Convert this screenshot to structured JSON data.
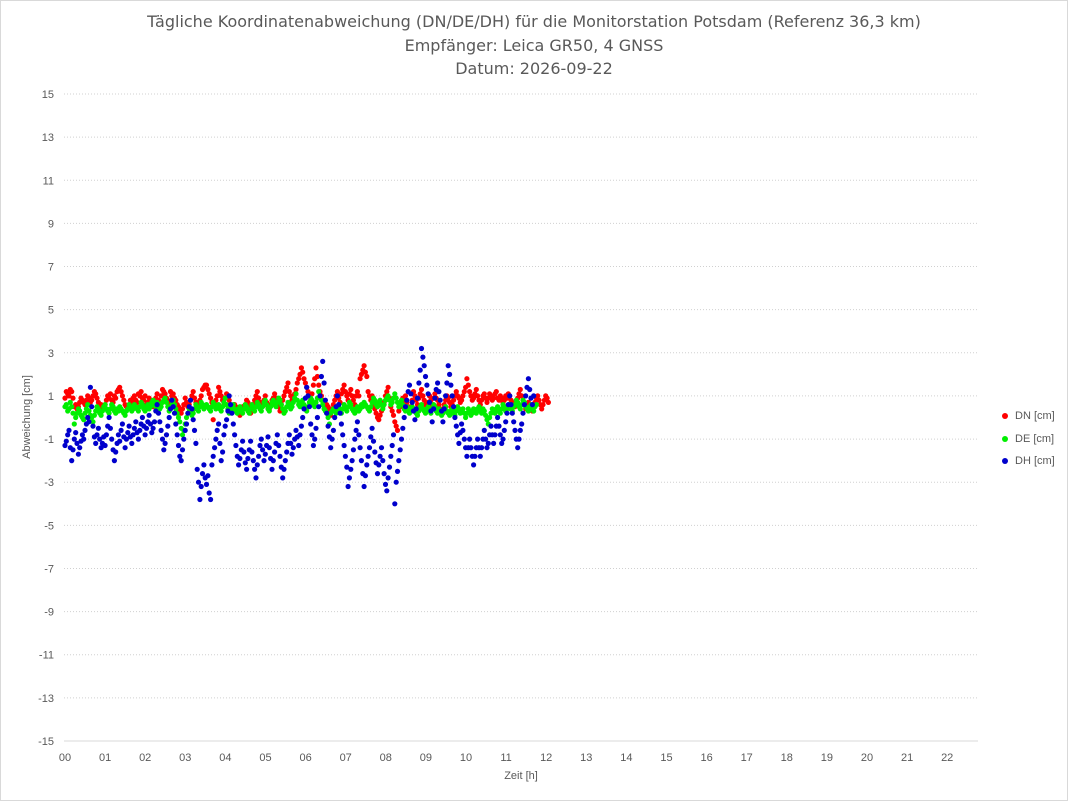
{
  "chart_data": {
    "type": "scatter",
    "title_lines": [
      "Tägliche Koordinatenabweichung (DN/DE/DH) für die Monitorstation Potsdam (Referenz 36,3 km)",
      "Empfänger: Leica GR50, 4 GNSS",
      "Datum: 2026-09-22"
    ],
    "xlabel": "Zeit [h]",
    "ylabel": "Abweichung [cm]",
    "ylim": [
      -15,
      15
    ],
    "xlim": [
      0,
      22.75
    ],
    "y_ticks": [
      "15",
      "13",
      "11",
      "9",
      "7",
      "5",
      "3",
      "1",
      "-1",
      "-3",
      "-5",
      "-7",
      "-9",
      "-11",
      "-13",
      "-15"
    ],
    "x_ticks": [
      "00",
      "01",
      "02",
      "03",
      "04",
      "05",
      "06",
      "07",
      "08",
      "09",
      "10",
      "11",
      "12",
      "13",
      "14",
      "15",
      "16",
      "17",
      "18",
      "19",
      "20",
      "21",
      "22"
    ],
    "grid": "horizontal dotted",
    "legend_position": "right",
    "x_sampling": {
      "start": 0,
      "step_hours": 0.0333
    },
    "series": [
      {
        "name": "DN [cm]",
        "color": "#ff0000",
        "values": [
          0.9,
          1.2,
          1.1,
          1.0,
          1.3,
          1.2,
          0.9,
          0.5,
          0.6,
          0.4,
          0.5,
          0.7,
          0.9,
          0.8,
          0.7,
          0.6,
          0.8,
          1.0,
          0.9,
          0.7,
          0.8,
          1.0,
          1.2,
          1.1,
          0.9,
          0.7,
          0.5,
          0.6,
          0.4,
          0.5,
          0.6,
          0.8,
          1.0,
          0.9,
          1.1,
          0.8,
          0.7,
          1.0,
          0.9,
          1.2,
          1.3,
          1.4,
          1.2,
          1.0,
          0.8,
          0.6,
          0.5,
          0.4,
          0.6,
          0.8,
          0.7,
          0.9,
          1.0,
          0.8,
          0.7,
          1.1,
          1.0,
          1.2,
          0.9,
          0.8,
          1.0,
          0.6,
          0.7,
          0.9,
          0.8,
          0.6,
          0.5,
          0.7,
          0.9,
          1.1,
          0.8,
          0.6,
          1.0,
          1.3,
          1.2,
          1.1,
          0.9,
          0.8,
          0.7,
          1.2,
          1.0,
          1.1,
          0.9,
          0.8,
          0.6,
          0.5,
          0.3,
          0.2,
          0.4,
          0.6,
          0.9,
          0.7,
          0.5,
          0.6,
          0.8,
          1.0,
          1.2,
          0.9,
          0.7,
          0.5,
          0.6,
          0.8,
          1.0,
          1.3,
          1.4,
          1.5,
          1.5,
          1.3,
          1.1,
          0.9,
          0.7,
          -0.1,
          0.6,
          0.8,
          1.0,
          1.4,
          1.2,
          1.0,
          0.8,
          0.6,
          0.9,
          1.1,
          1.0,
          0.8,
          0.6,
          0.5,
          0.4,
          0.6,
          0.5,
          0.3,
          0.2,
          0.1,
          0.3,
          0.5,
          0.4,
          0.6,
          0.8,
          0.7,
          0.5,
          0.2,
          0.4,
          0.6,
          0.8,
          1.0,
          1.2,
          0.9,
          0.7,
          0.5,
          0.6,
          0.8,
          1.0,
          0.7,
          0.5,
          0.4,
          0.6,
          0.8,
          0.9,
          1.1,
          0.9,
          0.7,
          0.5,
          0.3,
          0.6,
          0.8,
          1.0,
          1.2,
          1.4,
          1.6,
          1.2,
          1.0,
          0.8,
          0.9,
          1.1,
          1.3,
          1.6,
          1.8,
          2.0,
          2.3,
          2.1,
          1.8,
          1.6,
          1.4,
          1.2,
          1.0,
          0.8,
          1.1,
          1.5,
          1.8,
          2.3,
          1.9,
          1.5,
          1.2,
          1.0,
          0.8,
          0.6,
          0.4,
          0.6,
          0.5,
          0.3,
          0.1,
          0.4,
          0.6,
          0.8,
          1.0,
          1.2,
          0.9,
          0.7,
          1.1,
          1.3,
          1.5,
          1.2,
          1.0,
          0.8,
          1.1,
          1.3,
          1.0,
          0.8,
          0.6,
          1.0,
          1.2,
          1.0,
          1.8,
          2.0,
          2.2,
          2.4,
          2.1,
          1.9,
          1.2,
          1.0,
          0.8,
          1.0,
          0.6,
          0.4,
          0.2,
          0.0,
          -0.1,
          0.1,
          0.3,
          0.5,
          0.7,
          1.0,
          1.2,
          1.4,
          0.9,
          0.5,
          0.3,
          0.1,
          -0.2,
          -0.4,
          -0.6,
          0.3,
          0.5,
          0.7,
          0.9,
          0.8,
          1.0,
          0.7,
          0.5,
          0.3,
          0.5,
          0.8,
          1.2,
          1.0,
          0.8,
          0.6,
          0.9,
          1.1,
          1.3,
          1.0,
          0.8,
          0.6,
          0.4,
          0.7,
          1.0,
          0.8,
          0.6,
          0.9,
          1.1,
          0.9,
          0.8,
          0.6,
          0.4,
          0.2,
          0.4,
          0.6,
          0.8,
          1.0,
          0.9,
          0.7,
          0.5,
          0.6,
          0.8,
          1.0,
          1.2,
          1.0,
          0.9,
          0.7,
          0.8,
          1.0,
          1.2,
          1.4,
          1.8,
          1.5,
          1.2,
          1.0,
          0.8,
          0.9,
          1.1,
          1.3,
          1.0,
          0.8,
          0.6,
          0.8,
          1.0,
          1.1,
          0.9,
          0.7,
          0.9,
          1.1,
          1.0,
          0.8,
          0.9,
          1.1,
          1.2,
          0.9,
          0.8,
          1.0,
          0.9,
          0.7,
          0.8,
          1.0,
          0.9,
          1.1,
          1.0,
          0.8,
          0.7,
          0.6,
          0.5,
          0.7,
          0.9,
          1.1,
          1.3,
          1.0,
          0.8,
          0.6,
          0.4,
          0.5,
          0.7,
          0.6,
          0.4,
          0.3,
          0.5,
          0.7,
          0.9,
          1.0,
          0.8,
          0.6,
          0.4,
          0.6,
          0.8,
          1.0,
          0.9,
          0.7
        ]
      },
      {
        "name": "DE [cm]",
        "color": "#00ee00",
        "values": [
          0.5,
          0.6,
          0.3,
          0.4,
          0.7,
          0.5,
          0.2,
          -0.3,
          0.0,
          0.2,
          0.4,
          0.3,
          0.1,
          0.0,
          -0.1,
          0.2,
          0.4,
          0.6,
          0.3,
          0.1,
          0.0,
          -0.2,
          0.1,
          0.3,
          0.5,
          0.4,
          0.2,
          0.1,
          0.3,
          0.5,
          0.6,
          0.4,
          0.3,
          0.2,
          0.4,
          0.6,
          0.5,
          0.3,
          0.2,
          0.4,
          0.3,
          0.5,
          0.4,
          0.3,
          0.2,
          0.1,
          0.3,
          0.4,
          0.6,
          0.5,
          0.3,
          0.4,
          0.6,
          0.5,
          0.4,
          0.3,
          0.5,
          0.7,
          0.6,
          0.4,
          0.3,
          0.5,
          0.6,
          0.4,
          0.5,
          0.7,
          0.8,
          0.6,
          0.5,
          0.7,
          0.6,
          0.4,
          0.5,
          0.7,
          0.8,
          0.9,
          0.7,
          0.5,
          0.3,
          0.4,
          0.6,
          0.8,
          0.6,
          0.4,
          0.2,
          0.0,
          -0.2,
          -0.5,
          -0.8,
          -0.6,
          -0.3,
          0.0,
          0.2,
          0.4,
          0.3,
          0.1,
          0.2,
          0.4,
          0.6,
          0.5,
          0.3,
          0.5,
          0.7,
          0.6,
          0.4,
          0.5,
          0.6,
          0.5,
          0.4,
          0.3,
          0.5,
          0.7,
          0.6,
          0.4,
          0.5,
          0.6,
          0.4,
          0.3,
          0.5,
          0.7,
          0.9,
          0.6,
          0.4,
          0.2,
          0.3,
          0.5,
          0.6,
          0.4,
          0.3,
          0.2,
          0.4,
          0.5,
          0.3,
          0.2,
          0.4,
          0.6,
          0.5,
          0.3,
          0.2,
          0.4,
          0.6,
          0.5,
          0.3,
          0.5,
          0.7,
          0.6,
          0.4,
          0.3,
          0.5,
          0.7,
          0.8,
          0.6,
          0.4,
          0.3,
          0.5,
          0.7,
          0.8,
          0.6,
          0.5,
          0.7,
          0.9,
          0.8,
          0.6,
          0.4,
          0.2,
          0.3,
          0.5,
          0.7,
          0.6,
          0.4,
          0.5,
          0.7,
          0.9,
          1.1,
          0.8,
          0.6,
          0.5,
          0.7,
          0.8,
          0.6,
          0.4,
          0.3,
          0.5,
          0.7,
          0.9,
          0.8,
          0.6,
          0.5,
          0.7,
          0.9,
          1.2,
          1.0,
          0.8,
          0.6,
          0.4,
          0.3,
          0.2,
          0.0,
          -0.3,
          0.2,
          0.3,
          0.4,
          0.3,
          0.2,
          0.4,
          0.5,
          0.3,
          0.2,
          0.4,
          0.6,
          0.5,
          0.3,
          0.5,
          0.7,
          0.6,
          0.4,
          0.3,
          0.2,
          0.4,
          0.5,
          0.3,
          0.4,
          0.6,
          0.5,
          0.7,
          0.6,
          0.5,
          0.4,
          0.3,
          0.5,
          0.7,
          0.9,
          0.8,
          0.6,
          0.5,
          0.7,
          0.8,
          0.6,
          0.4,
          0.6,
          0.8,
          0.9,
          1.0,
          0.8,
          0.6,
          0.7,
          0.9,
          1.1,
          0.9,
          0.7,
          0.5,
          0.6,
          0.8,
          0.6,
          0.4,
          0.3,
          0.5,
          0.4,
          0.2,
          0.3,
          0.5,
          0.4,
          0.3,
          0.2,
          0.1,
          0.3,
          0.5,
          0.6,
          0.4,
          0.3,
          0.2,
          0.4,
          0.5,
          0.3,
          0.2,
          0.4,
          0.6,
          0.5,
          0.3,
          0.2,
          0.4,
          0.3,
          0.1,
          0.2,
          0.4,
          0.5,
          0.3,
          0.2,
          0.1,
          0.3,
          0.4,
          0.2,
          0.1,
          0.3,
          0.5,
          0.4,
          0.2,
          0.3,
          0.4,
          0.2,
          0.0,
          0.2,
          0.4,
          0.3,
          0.1,
          0.2,
          0.4,
          0.3,
          0.2,
          0.4,
          0.5,
          0.3,
          0.2,
          0.4,
          0.3,
          0.1,
          -0.1,
          -0.3,
          0.0,
          0.2,
          0.4,
          0.3,
          0.2,
          0.4,
          0.5,
          0.3,
          0.2,
          0.4,
          0.6,
          0.5,
          0.3,
          0.4,
          0.5,
          0.6,
          0.4,
          0.3,
          0.5,
          0.6,
          0.8,
          0.7,
          0.5,
          0.4,
          0.6,
          0.8,
          0.7,
          0.5,
          0.4,
          0.3,
          0.5,
          0.6,
          0.4,
          0.3,
          0.5,
          0.6
        ]
      },
      {
        "name": "DH [cm]",
        "color": "#0000cc",
        "values": [
          -1.3,
          -1.1,
          -0.8,
          -0.6,
          -1.4,
          -2.0,
          -1.5,
          -1.0,
          -0.7,
          -1.2,
          -1.7,
          -1.4,
          -1.1,
          -0.8,
          -1.0,
          -0.6,
          -0.3,
          0.0,
          -0.2,
          1.4,
          0.5,
          -0.4,
          -0.9,
          -1.2,
          -0.8,
          -0.5,
          -1.0,
          -1.4,
          -1.2,
          -0.9,
          -1.3,
          -0.8,
          -0.4,
          0.0,
          -0.5,
          -1.0,
          -1.5,
          -2.0,
          -1.6,
          -1.2,
          -0.8,
          -1.1,
          -0.6,
          -0.3,
          -0.9,
          -1.4,
          -1.0,
          -0.7,
          -0.4,
          -0.9,
          -1.2,
          -0.8,
          -0.5,
          -0.2,
          -0.7,
          -1.0,
          -0.6,
          -0.3,
          0.0,
          -0.4,
          -0.8,
          -0.5,
          -0.2,
          0.1,
          -0.3,
          -0.7,
          -0.5,
          -0.2,
          0.3,
          0.6,
          0.2,
          -0.2,
          -0.6,
          -1.0,
          -1.5,
          -1.2,
          -0.8,
          -0.4,
          0.0,
          0.4,
          0.8,
          0.5,
          0.2,
          -0.3,
          -0.8,
          -1.3,
          -1.8,
          -2.0,
          -1.5,
          -1.0,
          -0.6,
          -0.3,
          0.2,
          0.5,
          0.8,
          0.4,
          -0.1,
          -0.6,
          -1.2,
          -2.4,
          -3.0,
          -3.8,
          -3.2,
          -2.6,
          -2.2,
          -2.8,
          -3.1,
          -2.7,
          -3.5,
          -3.8,
          -2.2,
          -1.8,
          -1.4,
          -1.0,
          -0.6,
          -0.3,
          -1.2,
          -2.0,
          -1.6,
          -0.8,
          -0.4,
          -0.1,
          0.3,
          1.0,
          0.6,
          0.2,
          -0.3,
          -0.8,
          -1.3,
          -1.8,
          -2.2,
          -1.9,
          -1.5,
          -1.1,
          -1.6,
          -2.1,
          -2.4,
          -1.9,
          -1.5,
          -1.1,
          -1.6,
          -2.0,
          -2.4,
          -2.8,
          -2.2,
          -1.8,
          -1.3,
          -1.0,
          -1.5,
          -2.0,
          -1.7,
          -1.3,
          -0.9,
          -1.4,
          -1.9,
          -2.4,
          -2.0,
          -1.6,
          -1.2,
          -0.8,
          -1.3,
          -1.8,
          -2.3,
          -2.8,
          -2.4,
          -2.0,
          -1.6,
          -1.2,
          -0.8,
          -1.2,
          -1.7,
          -1.4,
          -1.0,
          -0.6,
          -0.9,
          -1.3,
          -0.8,
          -0.4,
          0.0,
          0.4,
          0.9,
          1.4,
          1.0,
          0.5,
          -0.3,
          -0.8,
          -1.3,
          -1.0,
          -0.5,
          0.0,
          0.5,
          1.0,
          1.9,
          2.6,
          1.6,
          0.8,
          0.2,
          -0.4,
          -0.9,
          -1.4,
          -1.0,
          -0.6,
          0.0,
          0.5,
          1.0,
          0.6,
          0.2,
          -0.3,
          -0.8,
          -1.3,
          -1.8,
          -2.3,
          -3.2,
          -2.8,
          -2.4,
          -2.0,
          -1.5,
          -1.0,
          -0.6,
          -0.2,
          -0.8,
          -1.4,
          -2.0,
          -2.6,
          -3.2,
          -2.7,
          -2.2,
          -1.8,
          -1.4,
          -0.9,
          -0.5,
          -1.1,
          -1.6,
          -2.1,
          -2.6,
          -2.2,
          -1.8,
          -1.4,
          -2.0,
          -2.6,
          -3.1,
          -3.4,
          -2.8,
          -2.3,
          -1.8,
          -1.3,
          -0.8,
          -4.0,
          -3.0,
          -2.5,
          -2.0,
          -1.5,
          -1.0,
          -0.5,
          0.0,
          0.5,
          0.8,
          1.2,
          1.5,
          1.1,
          0.7,
          0.3,
          -0.1,
          0.4,
          0.9,
          1.6,
          2.2,
          3.2,
          2.8,
          2.4,
          1.9,
          1.5,
          1.1,
          0.7,
          0.3,
          -0.2,
          0.4,
          0.9,
          1.3,
          1.6,
          1.2,
          0.8,
          0.3,
          -0.2,
          0.4,
          1.0,
          1.6,
          2.4,
          2.0,
          1.5,
          1.0,
          0.5,
          0.0,
          -0.4,
          -0.8,
          -1.2,
          -0.7,
          -0.3,
          -0.6,
          -1.0,
          -1.4,
          -1.8,
          -1.4,
          -1.0,
          -1.4,
          -1.8,
          -2.2,
          -1.8,
          -1.4,
          -1.0,
          -1.4,
          -1.8,
          -1.4,
          -1.0,
          -0.6,
          -1.0,
          -1.4,
          -1.2,
          -0.8,
          -0.4,
          -0.8,
          -1.2,
          -0.8,
          -0.4,
          0.0,
          -0.4,
          -0.8,
          -1.2,
          -1.0,
          -0.6,
          -0.2,
          0.2,
          0.6,
          1.0,
          0.6,
          0.2,
          -0.2,
          -0.6,
          -1.0,
          -1.4,
          -1.0,
          -0.6,
          -0.3,
          0.2,
          0.6,
          1.0,
          1.4,
          1.8,
          1.3,
          0.9,
          0.6,
          1.0
        ]
      }
    ]
  }
}
